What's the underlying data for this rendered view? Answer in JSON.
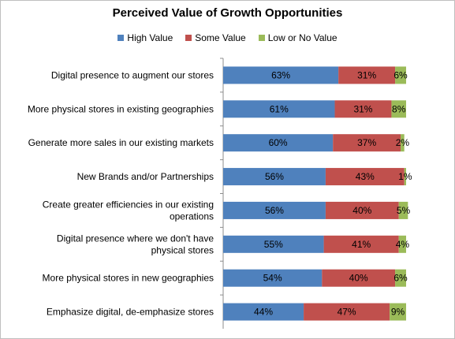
{
  "chart_data": {
    "type": "bar",
    "orientation": "horizontal",
    "stacked": true,
    "title": "Perceived Value of Growth Opportunities",
    "legend_position": "top",
    "categories": [
      [
        "Digital presence to augment our stores"
      ],
      [
        "More physical stores in existing geographies"
      ],
      [
        "Generate more sales in our existing markets"
      ],
      [
        "New Brands and/or Partnerships"
      ],
      [
        "Create greater efficiencies in our existing",
        "operations"
      ],
      [
        "Digital presence where we don't have",
        "physical stores"
      ],
      [
        "More physical stores in new geographies"
      ],
      [
        "Emphasize digital, de-emphasize stores"
      ]
    ],
    "series": [
      {
        "name": "High Value",
        "color": "#4f81bd",
        "values": [
          63,
          61,
          60,
          56,
          56,
          55,
          54,
          44
        ]
      },
      {
        "name": "Some Value",
        "color": "#c0504d",
        "values": [
          31,
          31,
          37,
          43,
          40,
          41,
          40,
          47
        ]
      },
      {
        "name": "Low or No Value",
        "color": "#9bbb59",
        "values": [
          6,
          8,
          2,
          1,
          5,
          4,
          6,
          9
        ]
      }
    ],
    "value_suffix": "%",
    "xlim": [
      0,
      100
    ],
    "grid": false
  }
}
